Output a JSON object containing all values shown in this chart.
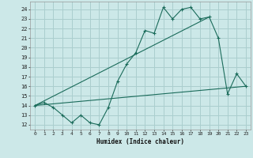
{
  "xlabel": "Humidex (Indice chaleur)",
  "background_color": "#cce8e8",
  "grid_color": "#aacece",
  "line_color": "#1a6b5a",
  "x_ticks": [
    0,
    1,
    2,
    3,
    4,
    5,
    6,
    7,
    8,
    9,
    10,
    11,
    12,
    13,
    14,
    15,
    16,
    17,
    18,
    19,
    20,
    21,
    22,
    23
  ],
  "y_ticks": [
    12,
    13,
    14,
    15,
    16,
    17,
    18,
    19,
    20,
    21,
    22,
    23,
    24
  ],
  "xlim": [
    -0.5,
    23.5
  ],
  "ylim": [
    11.5,
    24.8
  ],
  "series1_x": [
    0,
    1,
    2,
    3,
    4,
    5,
    6,
    7,
    8,
    9,
    10,
    11,
    12,
    13,
    14,
    15,
    16,
    17,
    18,
    19,
    20,
    21,
    22,
    23
  ],
  "series1_y": [
    14.0,
    14.3,
    13.8,
    13.0,
    12.2,
    13.0,
    12.2,
    12.0,
    13.8,
    16.5,
    18.3,
    19.5,
    21.8,
    21.5,
    24.2,
    23.0,
    24.0,
    24.2,
    23.0,
    23.2,
    21.0,
    15.2,
    17.3,
    16.0
  ],
  "series2_x": [
    0,
    23
  ],
  "series2_y": [
    14.0,
    16.0
  ],
  "series3_x": [
    0,
    19
  ],
  "series3_y": [
    14.0,
    23.2
  ]
}
